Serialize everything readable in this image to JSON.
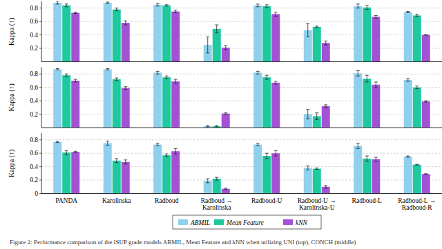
{
  "chart_data": [
    {
      "type": "bar",
      "y_label": "Kappa (↑)",
      "tick_labels": "y",
      "grid": true,
      "categories": [
        "PANDA",
        "Karolinska",
        "Radboud",
        "Radboud → Karolinska",
        "Radboud-U",
        "Radboud-U → Karolinska-U",
        "Radboud-L",
        "Radboud-L → Radboud-R"
      ],
      "ylim": [
        0,
        0.9
      ],
      "yticks": [
        0.2,
        0.4,
        0.6,
        0.8
      ],
      "series": [
        {
          "name": "ABMIL",
          "color": "#8fd0ec",
          "values": [
            0.88,
            0.88,
            0.85,
            0.25,
            0.84,
            0.47,
            0.83,
            0.74
          ],
          "errors": [
            0.02,
            0.01,
            0.02,
            0.12,
            0.02,
            0.1,
            0.03,
            0.01
          ]
        },
        {
          "name": "Mean Feature",
          "color": "#1ec9a0",
          "values": [
            0.84,
            0.78,
            0.84,
            0.49,
            0.83,
            0.52,
            0.81,
            0.69
          ],
          "errors": [
            0.02,
            0.02,
            0.01,
            0.06,
            0.02,
            0.01,
            0.03,
            0.02
          ]
        },
        {
          "name": "kNN",
          "color": "#a452d4",
          "values": [
            0.73,
            0.58,
            0.75,
            0.21,
            0.71,
            0.28,
            0.67,
            0.4
          ],
          "errors": [
            0.01,
            0.03,
            0.02,
            0.03,
            0.03,
            0.03,
            0.02,
            0.005
          ]
        }
      ]
    },
    {
      "type": "bar",
      "y_label": "Kappa (↑)",
      "tick_labels": "y",
      "grid": true,
      "categories": [
        "PANDA",
        "Karolinska",
        "Radboud",
        "Radboud → Karolinska",
        "Radboud-U",
        "Radboud-U → Karolinska-U",
        "Radboud-L",
        "Radboud-L → Radboud-R"
      ],
      "ylim": [
        0,
        0.9
      ],
      "yticks": [
        0.2,
        0.4,
        0.6,
        0.8
      ],
      "series": [
        {
          "name": "ABMIL",
          "color": "#8fd0ec",
          "values": [
            0.87,
            0.87,
            0.82,
            0.02,
            0.82,
            0.2,
            0.81,
            0.71
          ],
          "errors": [
            0.01,
            0.01,
            0.02,
            0.01,
            0.02,
            0.07,
            0.04,
            0.02
          ]
        },
        {
          "name": "Mean Feature",
          "color": "#1ec9a0",
          "values": [
            0.78,
            0.72,
            0.75,
            0.02,
            0.75,
            0.17,
            0.73,
            0.6
          ],
          "errors": [
            0.02,
            0.02,
            0.02,
            0.01,
            0.03,
            0.05,
            0.05,
            0.02
          ]
        },
        {
          "name": "kNN",
          "color": "#a452d4",
          "values": [
            0.7,
            0.59,
            0.69,
            0.21,
            0.67,
            0.32,
            0.64,
            0.39
          ],
          "errors": [
            0.02,
            0.02,
            0.03,
            0.01,
            0.02,
            0.02,
            0.04,
            0.01
          ]
        }
      ]
    },
    {
      "type": "bar",
      "y_label": "Kappa (↑)",
      "grid": true,
      "legend": "bottom",
      "categories": [
        "PANDA",
        "Karolinska",
        "Radboud",
        "Radboud → Karolinska",
        "Radboud-U",
        "Radboud-U → Karolinska-U",
        "Radboud-L",
        "Radboud-L → Radboud-R"
      ],
      "ylim": [
        0,
        0.9
      ],
      "yticks": [
        0,
        0.2,
        0.4,
        0.6,
        0.8
      ],
      "series": [
        {
          "name": "ABMIL",
          "color": "#8fd0ec",
          "values": [
            0.77,
            0.75,
            0.73,
            0.19,
            0.73,
            0.38,
            0.71,
            0.55
          ],
          "errors": [
            0.01,
            0.03,
            0.02,
            0.03,
            0.02,
            0.03,
            0.04,
            0.01
          ]
        },
        {
          "name": "Mean Feature",
          "color": "#1ec9a0",
          "values": [
            0.61,
            0.49,
            0.57,
            0.22,
            0.56,
            0.37,
            0.52,
            0.43
          ],
          "errors": [
            0.03,
            0.03,
            0.02,
            0.02,
            0.04,
            0.01,
            0.04,
            0.005
          ]
        },
        {
          "name": "kNN",
          "color": "#a452d4",
          "values": [
            0.62,
            0.47,
            0.63,
            0.07,
            0.6,
            0.1,
            0.51,
            0.29
          ],
          "errors": [
            0.01,
            0.03,
            0.04,
            0.01,
            0.04,
            0.02,
            0.03,
            0.005
          ]
        }
      ]
    }
  ],
  "caption": "Figure 2: Performance comparison of the ISUP grade models ABMIL, Mean Feature and kNN when utilizing UNI (top), CONCH (middle)"
}
